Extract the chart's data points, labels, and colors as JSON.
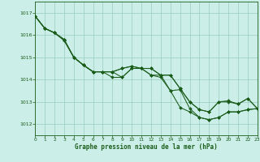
{
  "bg_color": "#cceee8",
  "grid_color": "#99ccbb",
  "line_color": "#1a5c1a",
  "xlabel": "Graphe pression niveau de la mer (hPa)",
  "xlim": [
    0,
    23
  ],
  "ylim": [
    1011.5,
    1017.5
  ],
  "yticks": [
    1012,
    1013,
    1014,
    1015,
    1016,
    1017
  ],
  "xticks": [
    0,
    1,
    2,
    3,
    4,
    5,
    6,
    7,
    8,
    9,
    10,
    11,
    12,
    13,
    14,
    15,
    16,
    17,
    18,
    19,
    20,
    21,
    22,
    23
  ],
  "series": [
    [
      1016.85,
      1016.3,
      1016.1,
      1015.8,
      1015.0,
      1014.65,
      1014.35,
      1014.35,
      1014.35,
      1014.5,
      1014.6,
      1014.5,
      1014.5,
      1014.2,
      1014.2,
      1013.6,
      1013.0,
      1012.65,
      1012.55,
      1013.0,
      1013.0,
      1012.9,
      1013.15,
      1012.7
    ],
    [
      1016.85,
      1016.3,
      1016.1,
      1015.8,
      1015.0,
      1014.65,
      1014.35,
      1014.35,
      1014.35,
      1014.5,
      1014.6,
      1014.5,
      1014.5,
      1014.2,
      1014.2,
      1013.6,
      1013.0,
      1012.65,
      1012.55,
      1013.0,
      1013.05,
      1012.9,
      1013.15,
      1012.7
    ],
    [
      1016.85,
      1016.3,
      1016.1,
      1015.8,
      1015.0,
      1014.65,
      1014.35,
      1014.35,
      1014.35,
      1014.1,
      1014.5,
      1014.5,
      1014.2,
      1014.2,
      1013.5,
      1013.55,
      1012.7,
      1012.3,
      1012.2,
      1012.3,
      1012.55,
      1012.55,
      1012.65,
      1012.7
    ],
    [
      1016.85,
      1016.3,
      1016.1,
      1015.75,
      1015.0,
      1014.65,
      1014.35,
      1014.35,
      1014.1,
      1014.1,
      1014.5,
      1014.5,
      1014.2,
      1014.1,
      1013.5,
      1012.75,
      1012.55,
      1012.3,
      1012.2,
      1012.3,
      1012.55,
      1012.55,
      1012.65,
      1012.7
    ]
  ]
}
